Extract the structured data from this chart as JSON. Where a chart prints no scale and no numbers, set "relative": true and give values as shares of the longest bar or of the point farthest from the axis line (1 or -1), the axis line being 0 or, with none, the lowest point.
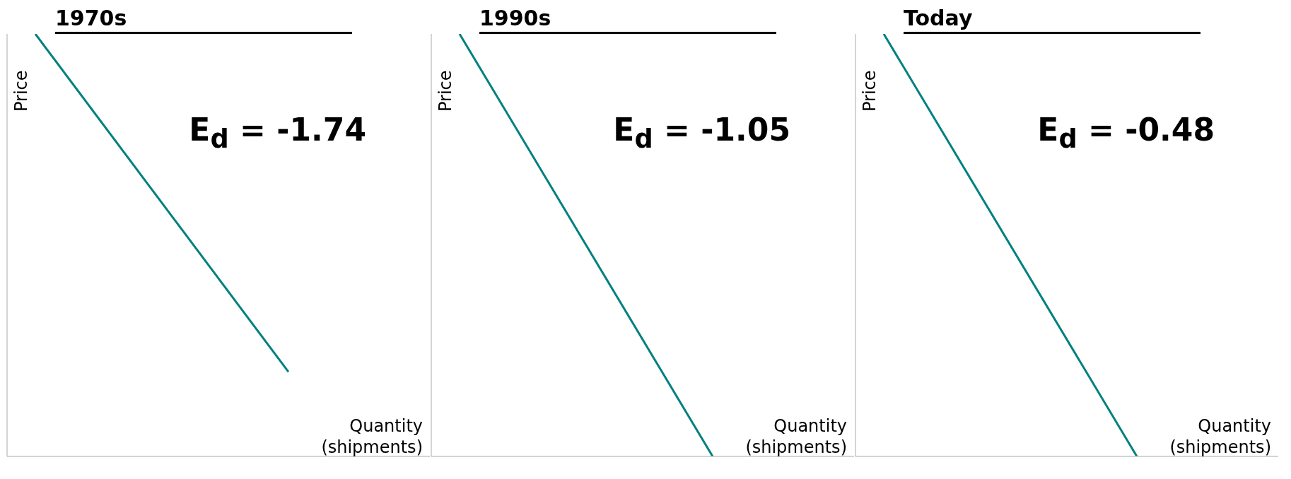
{
  "chart_data": [
    {
      "type": "line",
      "title": "1970s",
      "xlabel": "Quantity (shipments)",
      "ylabel": "Price",
      "relative": true,
      "categories": [
        null,
        null
      ],
      "series": [
        {
          "color": "#008080",
          "values": [
            1,
            0.2
          ]
        }
      ],
      "annotations": [
        "E$_{d}$ = -1.74"
      ],
      "grid": false,
      "legend": false,
      "marker": "none"
    },
    {
      "type": "line",
      "title": "1990s",
      "xlabel": "Quantity (shipments)",
      "ylabel": "Price",
      "relative": true,
      "categories": [
        null,
        null
      ],
      "series": [
        {
          "color": "#008080",
          "values": [
            1,
            0
          ]
        }
      ],
      "annotations": [
        "E$_{d}$ = -1.05"
      ],
      "grid": false,
      "legend": false,
      "marker": "none"
    },
    {
      "type": "line",
      "title": "Today",
      "xlabel": "Quantity (shipments)",
      "ylabel": "Price",
      "relative": true,
      "categories": [
        null,
        null
      ],
      "series": [
        {
          "color": "#008080",
          "values": [
            1,
            0
          ]
        }
      ],
      "annotations": [
        "E$_{d}$ = -0.48"
      ],
      "grid": false,
      "legend": false,
      "marker": "none"
    }
  ]
}
